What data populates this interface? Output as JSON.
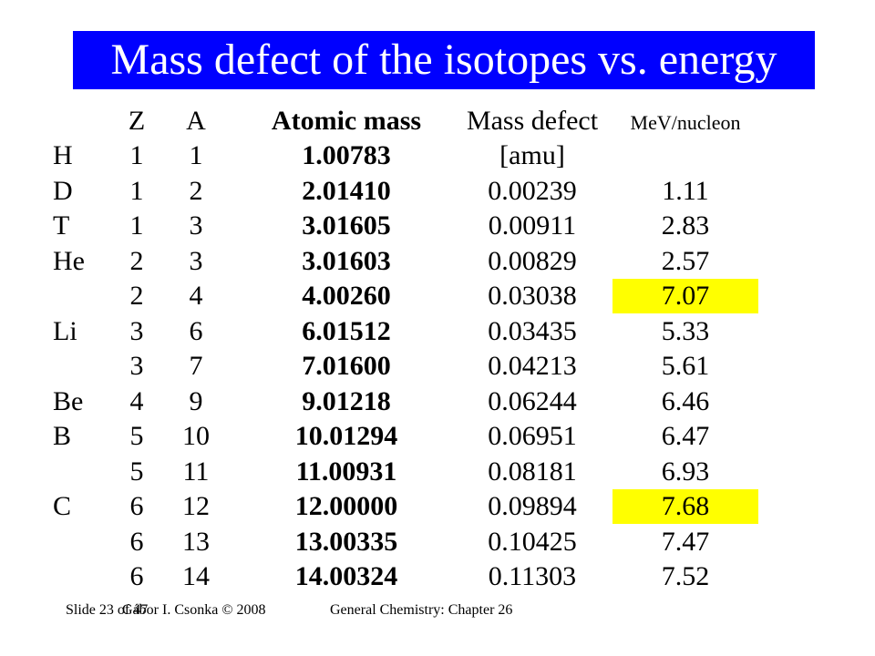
{
  "slide": {
    "title": "Mass defect of the isotopes vs. energy",
    "highlight_color": "#ffff00",
    "title_bar_color": "#0000ff"
  },
  "table": {
    "headers": {
      "z": "Z",
      "a": "A",
      "atomic_mass": "Atomic mass",
      "mass_defect": "Mass defect",
      "mev": "MeV/nucleon"
    },
    "rows": [
      {
        "element": "H",
        "z": "1",
        "a": "1",
        "atomic_mass": "1.00783",
        "mass_defect": "[amu]",
        "mev": "",
        "highlight": false
      },
      {
        "element": "D",
        "z": "1",
        "a": "2",
        "atomic_mass": "2.01410",
        "mass_defect": "0.00239",
        "mev": "1.11",
        "highlight": false
      },
      {
        "element": "T",
        "z": "1",
        "a": "3",
        "atomic_mass": "3.01605",
        "mass_defect": "0.00911",
        "mev": "2.83",
        "highlight": false
      },
      {
        "element": "He",
        "z": "2",
        "a": "3",
        "atomic_mass": "3.01603",
        "mass_defect": "0.00829",
        "mev": "2.57",
        "highlight": false
      },
      {
        "element": "",
        "z": "2",
        "a": "4",
        "atomic_mass": "4.00260",
        "mass_defect": "0.03038",
        "mev": "7.07",
        "highlight": true
      },
      {
        "element": "Li",
        "z": "3",
        "a": "6",
        "atomic_mass": "6.01512",
        "mass_defect": "0.03435",
        "mev": "5.33",
        "highlight": false
      },
      {
        "element": "",
        "z": "3",
        "a": "7",
        "atomic_mass": "7.01600",
        "mass_defect": "0.04213",
        "mev": "5.61",
        "highlight": false
      },
      {
        "element": "Be",
        "z": "4",
        "a": "9",
        "atomic_mass": "9.01218",
        "mass_defect": "0.06244",
        "mev": "6.46",
        "highlight": false
      },
      {
        "element": "B",
        "z": "5",
        "a": "10",
        "atomic_mass": "10.01294",
        "mass_defect": "0.06951",
        "mev": "6.47",
        "highlight": false
      },
      {
        "element": "",
        "z": "5",
        "a": "11",
        "atomic_mass": "11.00931",
        "mass_defect": "0.08181",
        "mev": "6.93",
        "highlight": false
      },
      {
        "element": "C",
        "z": "6",
        "a": "12",
        "atomic_mass": "12.00000",
        "mass_defect": "0.09894",
        "mev": "7.68",
        "highlight": true
      },
      {
        "element": "",
        "z": "6",
        "a": "13",
        "atomic_mass": "13.00335",
        "mass_defect": "0.10425",
        "mev": "7.47",
        "highlight": false
      },
      {
        "element": "",
        "z": "6",
        "a": "14",
        "atomic_mass": "14.00324",
        "mass_defect": "0.11303",
        "mev": "7.52",
        "highlight": false
      }
    ]
  },
  "footer": {
    "slide_number": "Slide 23 of 47",
    "author": "Gábor I. Csonka © 2008",
    "chapter": "General Chemistry: Chapter 26"
  }
}
